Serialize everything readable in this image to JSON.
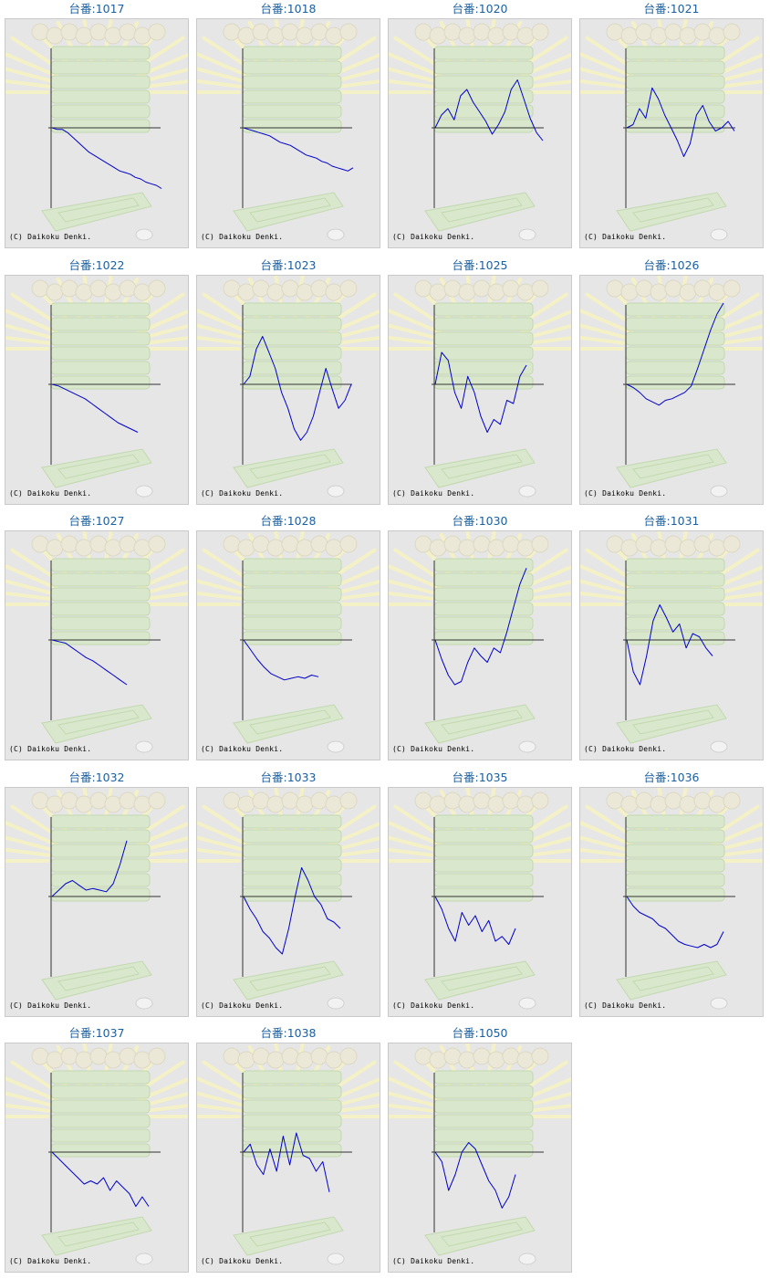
{
  "copyright": "(C) Daikoku Denki.",
  "line_color": "#0000cc",
  "chart_data": [
    {
      "type": "line",
      "title": "台番:1017",
      "y": [
        0,
        -1,
        -1,
        -3,
        -6,
        -9,
        -12,
        -15,
        -17,
        -19,
        -21,
        -23,
        -25,
        -27,
        -28,
        -29,
        -31,
        -32,
        -34,
        -35,
        -36,
        -38
      ]
    },
    {
      "type": "line",
      "title": "台番:1018",
      "y": [
        0,
        -1,
        -2,
        -3,
        -4,
        -5,
        -7,
        -9,
        -10,
        -11,
        -13,
        -15,
        -17,
        -18,
        -19,
        -21,
        -22,
        -24,
        -25,
        -26,
        -27,
        -25
      ]
    },
    {
      "type": "line",
      "title": "台番:1020",
      "y": [
        0,
        8,
        12,
        5,
        20,
        24,
        16,
        10,
        4,
        -4,
        2,
        10,
        24,
        30,
        18,
        6,
        -3,
        -8
      ]
    },
    {
      "type": "line",
      "title": "台番:1021",
      "y": [
        0,
        2,
        12,
        6,
        25,
        18,
        8,
        0,
        -8,
        -18,
        -10,
        8,
        14,
        4,
        -2,
        0,
        4,
        -2
      ]
    },
    {
      "type": "line",
      "title": "台番:1022",
      "y": [
        0,
        -1,
        -3,
        -5,
        -7,
        -9,
        -12,
        -15,
        -18,
        -21,
        -24,
        -26,
        -28,
        -30
      ]
    },
    {
      "type": "line",
      "title": "台番:1023",
      "y": [
        0,
        5,
        22,
        30,
        20,
        10,
        -5,
        -15,
        -28,
        -35,
        -30,
        -20,
        -5,
        10,
        -3,
        -15,
        -10,
        0
      ]
    },
    {
      "type": "line",
      "title": "台番:1025",
      "y": [
        0,
        20,
        15,
        -5,
        -15,
        5,
        -5,
        -20,
        -30,
        -22,
        -25,
        -10,
        -12,
        5,
        12
      ]
    },
    {
      "type": "line",
      "title": "台番:1026",
      "y": [
        0,
        -2,
        -5,
        -9,
        -11,
        -13,
        -10,
        -9,
        -7,
        -5,
        -1,
        10,
        22,
        34,
        44,
        52
      ]
    },
    {
      "type": "line",
      "title": "台番:1027",
      "y": [
        0,
        -1,
        -2,
        -5,
        -8,
        -11,
        -13,
        -16,
        -19,
        -22,
        -25,
        -28
      ]
    },
    {
      "type": "line",
      "title": "台番:1028",
      "y": [
        0,
        -6,
        -12,
        -17,
        -21,
        -23,
        -25,
        -24,
        -23,
        -24,
        -22,
        -23
      ]
    },
    {
      "type": "line",
      "title": "台番:1030",
      "y": [
        0,
        -12,
        -22,
        -28,
        -26,
        -14,
        -5,
        -10,
        -14,
        -5,
        -8,
        5,
        20,
        35,
        45
      ]
    },
    {
      "type": "line",
      "title": "台番:1031",
      "y": [
        0,
        -20,
        -28,
        -10,
        12,
        22,
        14,
        5,
        10,
        -5,
        4,
        2,
        -5,
        -10
      ]
    },
    {
      "type": "line",
      "title": "台番:1032",
      "y": [
        0,
        4,
        8,
        10,
        7,
        4,
        5,
        4,
        3,
        8,
        20,
        35
      ]
    },
    {
      "type": "line",
      "title": "台番:1033",
      "y": [
        0,
        -8,
        -14,
        -22,
        -26,
        -32,
        -36,
        -20,
        0,
        18,
        10,
        0,
        -5,
        -14,
        -16,
        -20
      ]
    },
    {
      "type": "line",
      "title": "台番:1035",
      "y": [
        0,
        -8,
        -20,
        -28,
        -10,
        -18,
        -12,
        -22,
        -15,
        -28,
        -25,
        -30,
        -20
      ]
    },
    {
      "type": "line",
      "title": "台番:1036",
      "y": [
        0,
        -6,
        -10,
        -12,
        -14,
        -18,
        -20,
        -24,
        -28,
        -30,
        -31,
        -32,
        -30,
        -32,
        -30,
        -22
      ]
    },
    {
      "type": "line",
      "title": "台番:1037",
      "y": [
        0,
        -4,
        -8,
        -12,
        -16,
        -20,
        -18,
        -20,
        -16,
        -24,
        -18,
        -22,
        -26,
        -34,
        -28,
        -34
      ]
    },
    {
      "type": "line",
      "title": "台番:1038",
      "y": [
        0,
        5,
        -8,
        -14,
        2,
        -12,
        10,
        -8,
        12,
        -2,
        -4,
        -12,
        -6,
        -25
      ]
    },
    {
      "type": "line",
      "title": "台番:1050",
      "y": [
        0,
        -6,
        -24,
        -14,
        0,
        6,
        2,
        -8,
        -18,
        -24,
        -35,
        -28,
        -14
      ]
    }
  ]
}
